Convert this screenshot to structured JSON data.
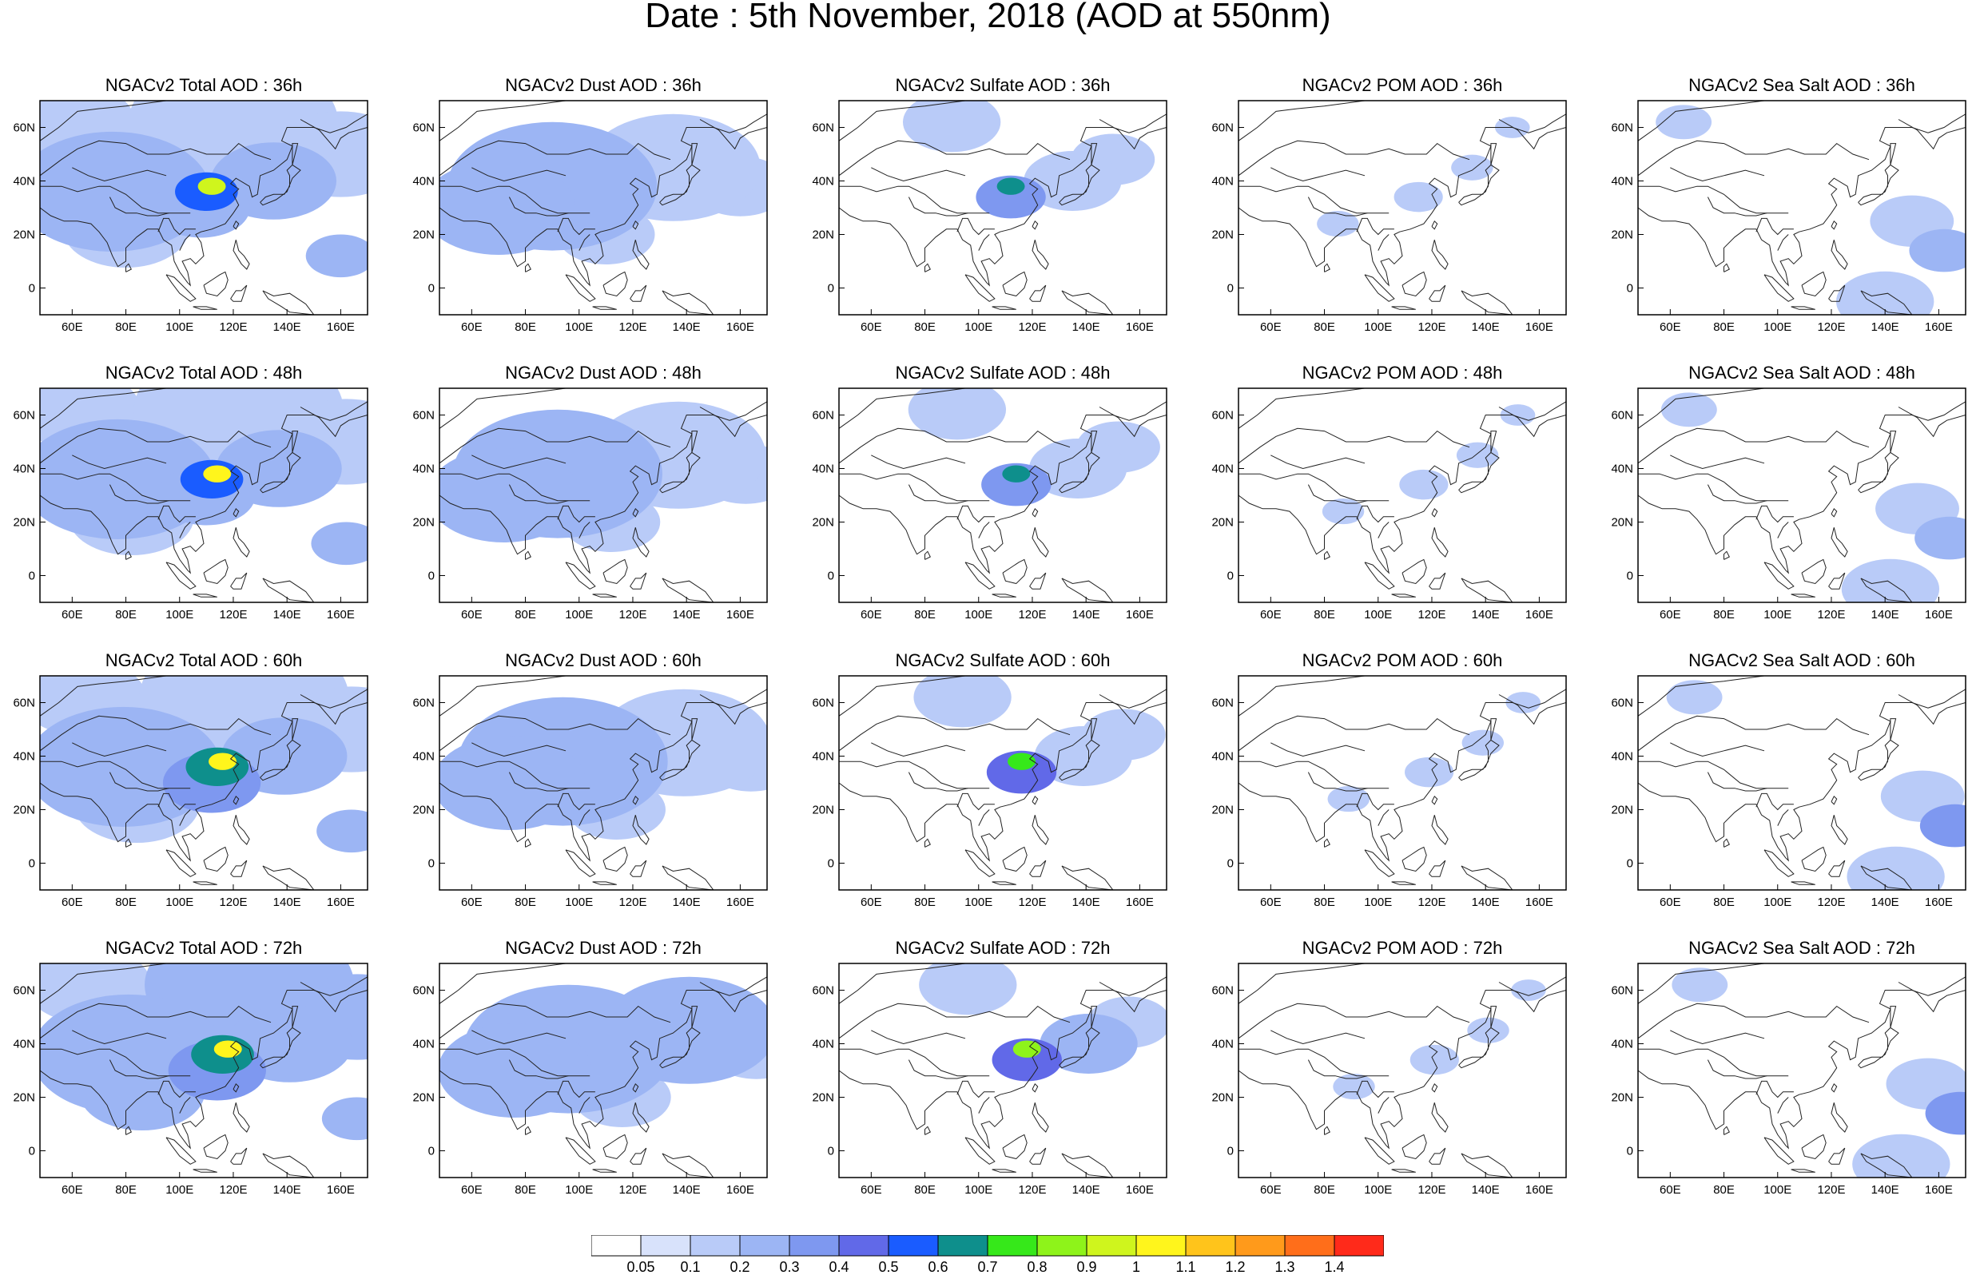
{
  "title": "Date : 5th November, 2018 (AOD at 550nm)",
  "map": {
    "lon_range": [
      48,
      170
    ],
    "lat_range": [
      -10,
      70
    ],
    "lon_ticks": [
      "60E",
      "80E",
      "100E",
      "120E",
      "140E",
      "160E"
    ],
    "lat_ticks": [
      "60N",
      "40N",
      "20N",
      "0"
    ]
  },
  "panels": [
    [
      "NGACv2 Total AOD : 36h",
      "NGACv2 Dust AOD : 36h",
      "NGACv2 Sulfate AOD : 36h",
      "NGACv2 POM AOD : 36h",
      "NGACv2 Sea Salt AOD : 36h"
    ],
    [
      "NGACv2 Total AOD : 48h",
      "NGACv2 Dust AOD : 48h",
      "NGACv2 Sulfate AOD : 48h",
      "NGACv2 POM AOD : 48h",
      "NGACv2 Sea Salt AOD : 48h"
    ],
    [
      "NGACv2 Total AOD : 60h",
      "NGACv2 Dust AOD : 60h",
      "NGACv2 Sulfate AOD : 60h",
      "NGACv2 POM AOD : 60h",
      "NGACv2 Sea Salt AOD : 60h"
    ],
    [
      "NGACv2 Total AOD : 72h",
      "NGACv2 Dust AOD : 72h",
      "NGACv2 Sulfate AOD : 72h",
      "NGACv2 POM AOD : 72h",
      "NGACv2 Sea Salt  AOD : 72h"
    ]
  ],
  "colorbar": {
    "labels": [
      "0.05",
      "0.1",
      "0.2",
      "0.3",
      "0.4",
      "0.5",
      "0.6",
      "0.7",
      "0.8",
      "0.9",
      "1",
      "1.1",
      "1.2",
      "1.3",
      "1.4"
    ],
    "colors": [
      "#ffffff",
      "#d8e2fb",
      "#b9cbf8",
      "#9cb5f4",
      "#7e98f0",
      "#6169e8",
      "#1a5cff",
      "#0e8f8c",
      "#36e81a",
      "#8ef31a",
      "#cff51d",
      "#fff51c",
      "#ffc41b",
      "#ff9a1b",
      "#ff6e1a",
      "#ff2a1a"
    ]
  },
  "fields": {
    "total": [
      {
        "lon": 112,
        "lat": 38,
        "r": 4,
        "v": 0.9
      },
      {
        "lon": 110,
        "lat": 36,
        "r": 9,
        "v": 0.5
      },
      {
        "lon": 108,
        "lat": 30,
        "r": 14,
        "v": 0.25
      },
      {
        "lon": 75,
        "lat": 36,
        "r": 28,
        "v": 0.2
      },
      {
        "lon": 120,
        "lat": 62,
        "r": 30,
        "v": 0.15
      },
      {
        "lon": 135,
        "lat": 40,
        "r": 18,
        "v": 0.2
      },
      {
        "lon": 160,
        "lat": 50,
        "r": 20,
        "v": 0.15
      },
      {
        "lon": 160,
        "lat": 12,
        "r": 10,
        "v": 0.2
      },
      {
        "lon": 80,
        "lat": 22,
        "r": 18,
        "v": 0.15
      },
      {
        "lon": 60,
        "lat": 62,
        "r": 18,
        "v": 0.12
      }
    ],
    "dust": [
      {
        "lon": 90,
        "lat": 38,
        "r": 30,
        "v": 0.2
      },
      {
        "lon": 70,
        "lat": 30,
        "r": 22,
        "v": 0.2
      },
      {
        "lon": 135,
        "lat": 45,
        "r": 25,
        "v": 0.15
      },
      {
        "lon": 160,
        "lat": 38,
        "r": 14,
        "v": 0.12
      },
      {
        "lon": 110,
        "lat": 20,
        "r": 14,
        "v": 0.1
      }
    ],
    "sulfate": [
      {
        "lon": 112,
        "lat": 38,
        "r": 4,
        "v": 0.6
      },
      {
        "lon": 112,
        "lat": 34,
        "r": 10,
        "v": 0.35
      },
      {
        "lon": 135,
        "lat": 40,
        "r": 14,
        "v": 0.15
      },
      {
        "lon": 90,
        "lat": 62,
        "r": 14,
        "v": 0.12
      },
      {
        "lon": 150,
        "lat": 48,
        "r": 12,
        "v": 0.1
      }
    ],
    "pom": [
      {
        "lon": 115,
        "lat": 34,
        "r": 7,
        "v": 0.12
      },
      {
        "lon": 85,
        "lat": 24,
        "r": 6,
        "v": 0.12
      },
      {
        "lon": 135,
        "lat": 45,
        "r": 6,
        "v": 0.1
      },
      {
        "lon": 150,
        "lat": 60,
        "r": 5,
        "v": 0.1
      }
    ],
    "seasalt": [
      {
        "lon": 162,
        "lat": 14,
        "r": 10,
        "v": 0.25
      },
      {
        "lon": 150,
        "lat": 25,
        "r": 12,
        "v": 0.1
      },
      {
        "lon": 65,
        "lat": 62,
        "r": 8,
        "v": 0.1
      },
      {
        "lon": 140,
        "lat": -5,
        "r": 14,
        "v": 0.1
      }
    ]
  },
  "field_order": [
    "total",
    "dust",
    "sulfate",
    "pom",
    "seasalt"
  ]
}
